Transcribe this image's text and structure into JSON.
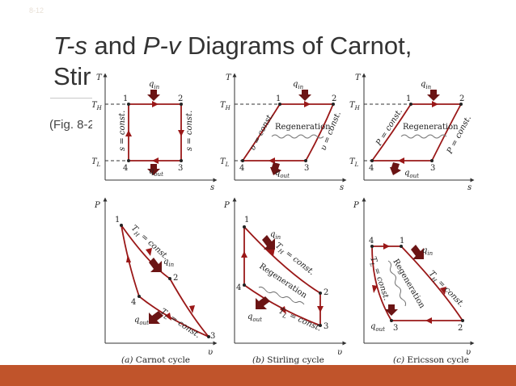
{
  "slide": {
    "number": "8-12",
    "title_part1": "T-s",
    "title_part2": " and ",
    "title_part3": "P-v",
    "title_part4": " Diagrams of Carnot,",
    "title_line2": "Stir",
    "fig_ref": "(Fig. 8-2"
  },
  "colors": {
    "bottom_bar": "#c0542b",
    "cycle_line": "#9a1818"
  },
  "axes": {
    "T": "T",
    "s": "s",
    "P": "P",
    "v": "υ",
    "TH": "T",
    "TL": "T",
    "H": "H",
    "L": "L"
  },
  "labels": {
    "q": "q",
    "in": "in",
    "out": "out",
    "regeneration": "Regeneration",
    "s_const": "s = const.",
    "v_const": "υ = const.",
    "p_const": "P = const.",
    "th_const": "T",
    "tl_const": "T",
    "const_suffix": " = const."
  },
  "points": [
    "1",
    "2",
    "3",
    "4"
  ],
  "captions": {
    "a_letter": "(a)",
    "a_text": " Carnot cycle",
    "b_letter": "(b)",
    "b_text": " Stirling cycle",
    "c_letter": "(c)",
    "c_text": " Ericsson cycle"
  }
}
